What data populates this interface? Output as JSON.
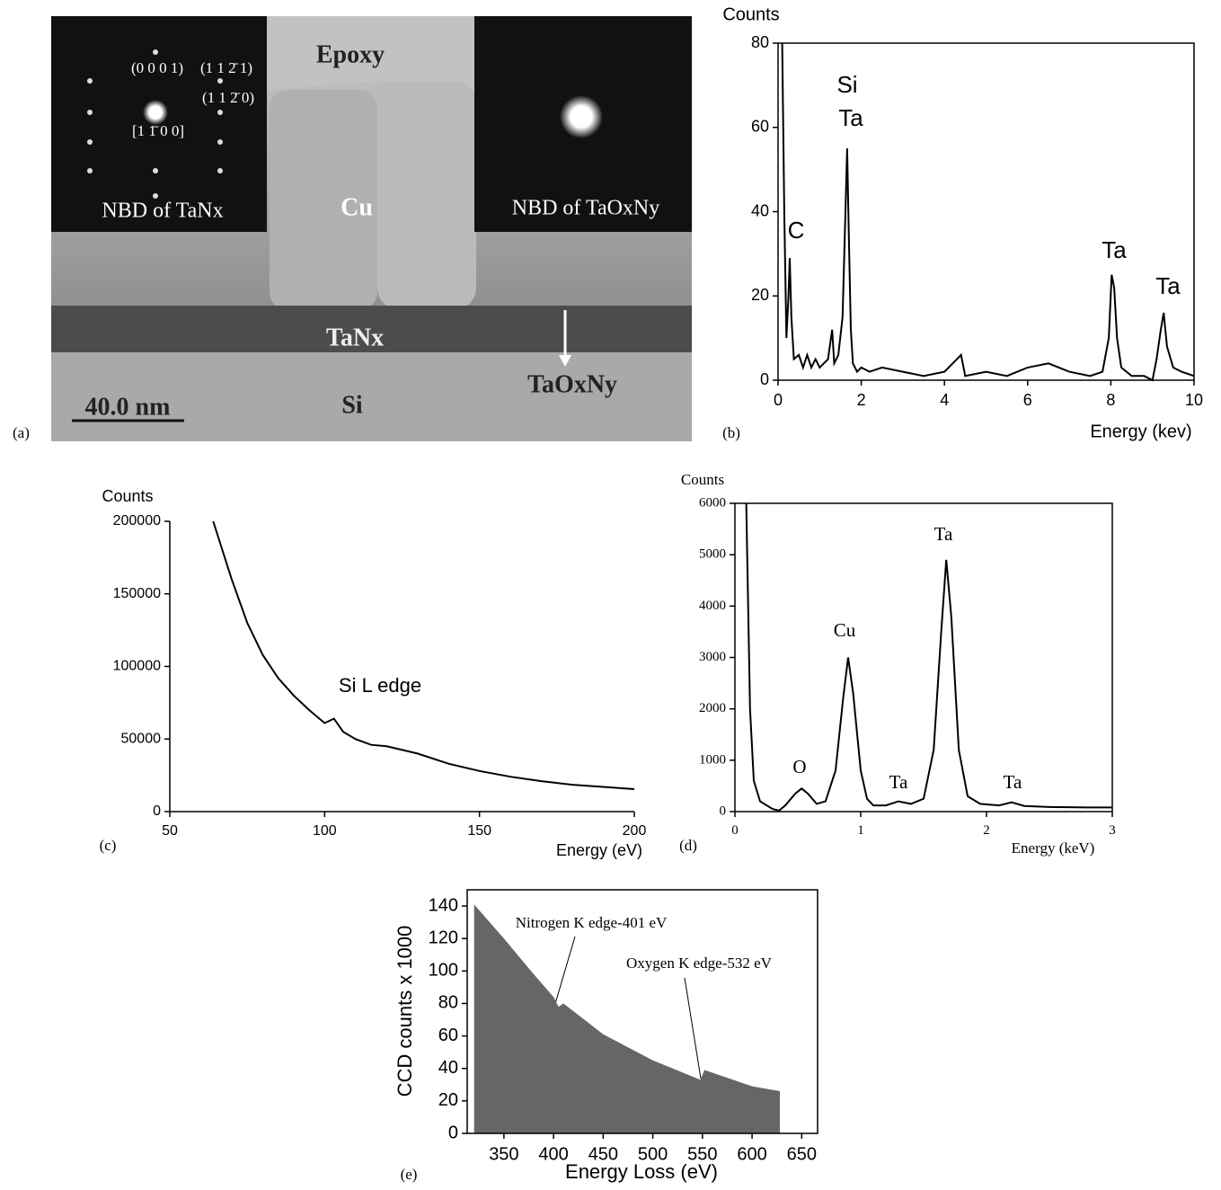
{
  "micrograph": {
    "panel_label": "(a)",
    "labels": [
      "Epoxy",
      "Cu",
      "TaNx",
      "Si",
      "TaOxNy",
      "40.0 nm"
    ],
    "insets": [
      {
        "caption": "NBD of TaNx",
        "indices": [
          "(0 0 0 1)",
          "(1 1 2̄ 1)",
          "(1 1 2̄ 0)",
          "[1 1̄ 0 0]"
        ]
      },
      {
        "caption": "NBD of TaOxNy"
      }
    ]
  },
  "chart_data": [
    {
      "type": "line",
      "panel_label": "(b)",
      "y_title": "Counts",
      "x_title": "Energy (kev)",
      "annotations": [
        "Si",
        "Ta",
        "C",
        "Ta",
        "Ta"
      ],
      "color": "#000000",
      "x": [
        0.1,
        0.15,
        0.2,
        0.25,
        0.28,
        0.32,
        0.38,
        0.5,
        0.6,
        0.7,
        0.8,
        0.9,
        1.0,
        1.1,
        1.2,
        1.3,
        1.35,
        1.45,
        1.55,
        1.62,
        1.66,
        1.7,
        1.75,
        1.8,
        1.9,
        2.0,
        2.2,
        2.5,
        3.0,
        3.5,
        4.0,
        4.4,
        4.5,
        5.0,
        5.5,
        6.0,
        6.5,
        7.0,
        7.5,
        7.8,
        7.95,
        8.02,
        8.08,
        8.15,
        8.25,
        8.5,
        8.8,
        9.0,
        9.1,
        9.2,
        9.27,
        9.35,
        9.5,
        9.7,
        10.0
      ],
      "values": [
        80,
        40,
        10,
        20,
        29,
        15,
        5,
        6,
        3,
        6,
        3,
        5,
        3,
        4,
        5,
        12,
        4,
        6,
        15,
        40,
        55,
        35,
        12,
        4,
        2,
        3,
        2,
        3,
        2,
        1,
        2,
        6,
        1,
        2,
        1,
        3,
        4,
        2,
        1,
        2,
        10,
        25,
        22,
        10,
        3,
        1,
        1,
        0,
        5,
        12,
        16,
        8,
        3,
        2,
        1
      ],
      "xlim": [
        0,
        10
      ],
      "ylim": [
        0,
        80
      ],
      "xticks": [
        0,
        2,
        4,
        6,
        8,
        10
      ],
      "yticks": [
        0,
        20,
        40,
        60,
        80
      ]
    },
    {
      "type": "line",
      "panel_label": "(c)",
      "y_title": "Counts",
      "x_title": "Energy (eV)",
      "annotations": [
        "Si L edge"
      ],
      "color": "#000000",
      "x": [
        64,
        70,
        75,
        80,
        85,
        90,
        95,
        100,
        103,
        106,
        110,
        115,
        120,
        130,
        140,
        150,
        160,
        170,
        180,
        190,
        200
      ],
      "values": [
        200000,
        160000,
        130000,
        108000,
        92000,
        80000,
        70000,
        61000,
        64000,
        55000,
        50000,
        46000,
        45000,
        40000,
        33000,
        28000,
        24000,
        21000,
        18500,
        17000,
        15500
      ],
      "xlim": [
        50,
        200
      ],
      "ylim": [
        0,
        200000
      ],
      "xticks": [
        50,
        100,
        150,
        200
      ],
      "yticks": [
        0,
        50000,
        100000,
        150000,
        200000
      ]
    },
    {
      "type": "line",
      "panel_label": "(d)",
      "y_title": "Counts",
      "x_title": "Energy (keV)",
      "annotations": [
        "O",
        "Cu",
        "Ta",
        "Ta",
        "Ta"
      ],
      "color": "#000000",
      "x": [
        0.09,
        0.12,
        0.15,
        0.2,
        0.3,
        0.35,
        0.4,
        0.48,
        0.53,
        0.58,
        0.65,
        0.72,
        0.8,
        0.86,
        0.9,
        0.94,
        1.0,
        1.05,
        1.1,
        1.2,
        1.3,
        1.4,
        1.5,
        1.58,
        1.64,
        1.68,
        1.72,
        1.78,
        1.85,
        1.95,
        2.1,
        2.2,
        2.3,
        2.5,
        2.8,
        3.0
      ],
      "values": [
        6000,
        2000,
        600,
        200,
        50,
        20,
        120,
        350,
        450,
        350,
        150,
        200,
        800,
        2200,
        3000,
        2300,
        800,
        250,
        120,
        120,
        200,
        150,
        250,
        1200,
        3500,
        4900,
        3800,
        1200,
        300,
        150,
        120,
        180,
        110,
        90,
        80,
        80
      ],
      "xlim": [
        0,
        3
      ],
      "ylim": [
        0,
        6000
      ],
      "xticks": [
        0,
        1,
        2,
        3
      ],
      "yticks": [
        0,
        1000,
        2000,
        3000,
        4000,
        5000,
        6000
      ]
    },
    {
      "type": "area",
      "panel_label": "(e)",
      "y_title": "CCD counts x 1000",
      "x_title": "Energy Loss (eV)",
      "annotations": [
        "Nitrogen K edge-401 eV",
        "Oxygen K edge-532 eV"
      ],
      "color": "#666666",
      "x": [
        320,
        350,
        380,
        400,
        405,
        410,
        450,
        500,
        548,
        552,
        600,
        628
      ],
      "values": [
        141,
        120,
        98,
        84,
        78,
        80,
        61,
        45,
        33,
        39,
        29,
        26
      ],
      "xlim": [
        313,
        666
      ],
      "ylim": [
        0,
        150
      ],
      "xticks": [
        350,
        400,
        450,
        500,
        550,
        600,
        650
      ],
      "yticks": [
        0,
        20,
        40,
        60,
        80,
        100,
        120,
        140
      ]
    }
  ]
}
